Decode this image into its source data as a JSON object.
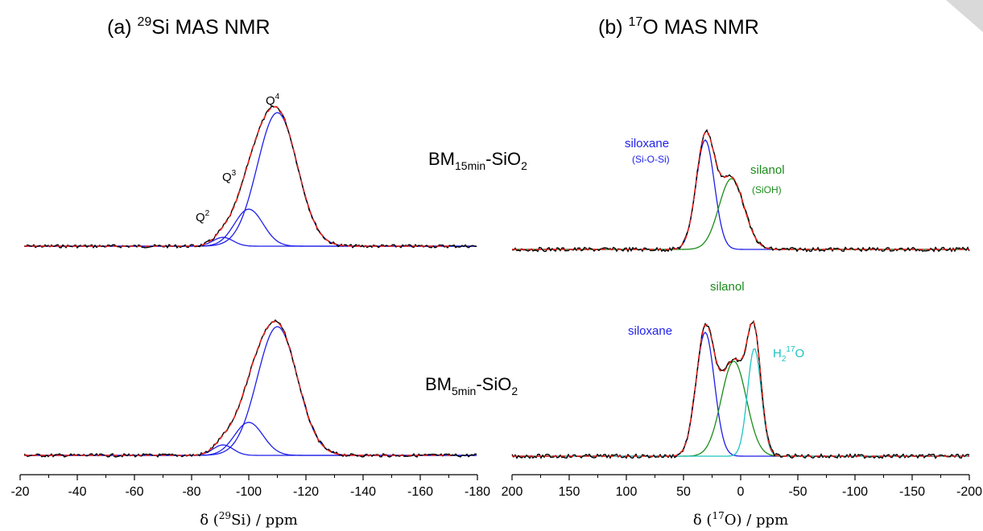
{
  "chart_data": [
    {
      "type": "line",
      "panel": "(a)",
      "title_prefix": "(a) ",
      "title_isotope_mass": "29",
      "title_rest": "Si MAS NMR",
      "xlabel_pre": "δ (",
      "xlabel_mass": "29",
      "xlabel_post": "Si) / ppm",
      "xlim": [
        -20,
        -180
      ],
      "x_ticks": [
        "-20",
        "-40",
        "-60",
        "-80",
        "-100",
        "-120",
        "-140",
        "-160",
        "-180"
      ],
      "spectra": [
        {
          "sample_base": "BM",
          "sample_sub": "15min",
          "sample_mid": "-SiO",
          "sample_sub2": "2",
          "baseline_y": 306,
          "components": [
            {
              "name": "Q2",
              "center": -91,
              "width": 3.5,
              "amp": 11
            },
            {
              "name": "Q3",
              "center": -100,
              "width": 5,
              "amp": 46
            },
            {
              "name": "Q4",
              "center": -110,
              "width": 7,
              "amp": 166
            }
          ],
          "peak_labels": [
            {
              "base": "Q",
              "sup": "2"
            },
            {
              "base": "Q",
              "sup": "3"
            },
            {
              "base": "Q",
              "sup": "4"
            }
          ]
        },
        {
          "sample_base": "BM",
          "sample_sub": "5min",
          "sample_mid": "-SiO",
          "sample_sub2": "2",
          "baseline_y": 566,
          "components": [
            {
              "name": "Q2",
              "center": -91,
              "width": 3.5,
              "amp": 13
            },
            {
              "name": "Q3",
              "center": -100,
              "width": 5,
              "amp": 41
            },
            {
              "name": "Q4",
              "center": -110,
              "width": 7,
              "amp": 160
            }
          ],
          "peak_labels": []
        }
      ]
    },
    {
      "type": "line",
      "panel": "(b)",
      "title_prefix": "(b) ",
      "title_isotope_mass": "17",
      "title_rest": "O MAS NMR",
      "xlabel_pre": "δ (",
      "xlabel_mass": "17",
      "xlabel_post": "O) / ppm",
      "xlim": [
        200,
        -200
      ],
      "x_ticks": [
        "200",
        "150",
        "100",
        "50",
        "0",
        "-50",
        "-100",
        "-150",
        "-200"
      ],
      "spectra": [
        {
          "baseline_y": 310,
          "components": [
            {
              "name": "siloxane",
              "center": 31,
              "width": 8,
              "amp": 136
            },
            {
              "name": "silanol",
              "center": 8,
              "width": 11,
              "amp": 88
            }
          ],
          "labels": {
            "siloxane": "siloxane",
            "siloxane_sub": "(Si-O-Si)",
            "silanol": "silanol",
            "silanol_sub": "(SiOH)"
          }
        },
        {
          "baseline_y": 567,
          "components": [
            {
              "name": "siloxane",
              "center": 31,
              "width": 8,
              "amp": 154
            },
            {
              "name": "silanol",
              "center": 6,
              "width": 11,
              "amp": 118
            },
            {
              "name": "H2 17O",
              "center": -12,
              "width": 6,
              "amp": 134
            }
          ],
          "labels": {
            "siloxane": "siloxane",
            "silanol": "silanol",
            "water_base": "H",
            "water_sub": "2",
            "water_sup": "17",
            "water_end": "O"
          }
        }
      ]
    }
  ],
  "colors": {
    "experimental": "#000000",
    "fit_sum": "#e8241d",
    "siloxane_q": "#1f1fe8",
    "silanol": "#1a8c1a",
    "water": "#1fc3c3",
    "axis": "#000000"
  }
}
